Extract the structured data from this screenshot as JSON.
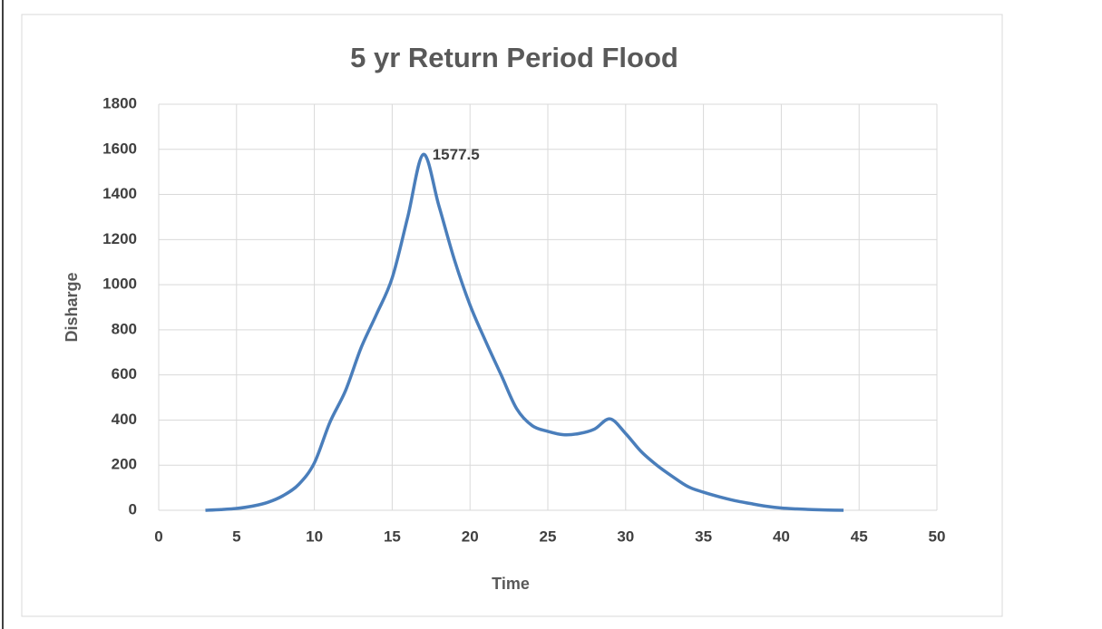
{
  "chart_data": {
    "type": "line",
    "title": "5 yr Return Period Flood",
    "xlabel": "Time",
    "ylabel": "Disharge",
    "annotation": {
      "text": "1577.5",
      "x": 17,
      "y": 1577.5
    },
    "x": [
      3,
      4,
      5,
      6,
      7,
      8,
      9,
      10,
      11,
      12,
      13,
      14,
      15,
      16,
      17,
      18,
      19,
      20,
      21,
      22,
      23,
      24,
      25,
      26,
      27,
      28,
      29,
      30,
      31,
      32,
      33,
      34,
      35,
      36,
      37,
      38,
      39,
      40,
      41,
      42,
      43,
      44
    ],
    "series": [
      {
        "name": "Discharge",
        "color": "#4a7ebb",
        "values": [
          0,
          3,
          8,
          18,
          35,
          65,
          115,
          210,
          390,
          530,
          720,
          870,
          1030,
          1300,
          1577.5,
          1350,
          1110,
          910,
          750,
          600,
          450,
          375,
          350,
          335,
          340,
          360,
          405,
          340,
          260,
          200,
          150,
          105,
          80,
          60,
          43,
          30,
          18,
          10,
          6,
          3,
          1,
          0
        ]
      }
    ],
    "xlim": [
      0,
      50
    ],
    "xticks": [
      0,
      5,
      10,
      15,
      20,
      25,
      30,
      35,
      40,
      45,
      50
    ],
    "ylim": [
      0,
      1800
    ],
    "yticks": [
      0,
      200,
      400,
      600,
      800,
      1000,
      1200,
      1400,
      1600,
      1800
    ],
    "grid": true
  }
}
